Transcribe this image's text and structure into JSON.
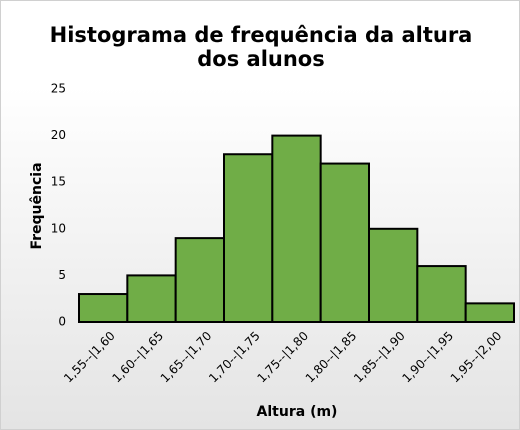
{
  "chart_data": {
    "type": "bar",
    "title": "Histograma de frequência da altura dos alunos",
    "x_label": "Altura (m)",
    "y_label": "Frequência",
    "categories": [
      "1,55--|1,60",
      "1,60--|1,65",
      "1,65--|1,70",
      "1,70--|1,75",
      "1,75--|1,80",
      "1,80--|1,85",
      "1,85--|1,90",
      "1,90--|1,95",
      "1,95--|2,00"
    ],
    "values": [
      3,
      5,
      9,
      18,
      20,
      17,
      10,
      6,
      2
    ],
    "color": "#70ad47",
    "ylim": [
      0,
      25
    ],
    "yticks": [
      0,
      5,
      10,
      15,
      20,
      25
    ],
    "grid": false
  }
}
